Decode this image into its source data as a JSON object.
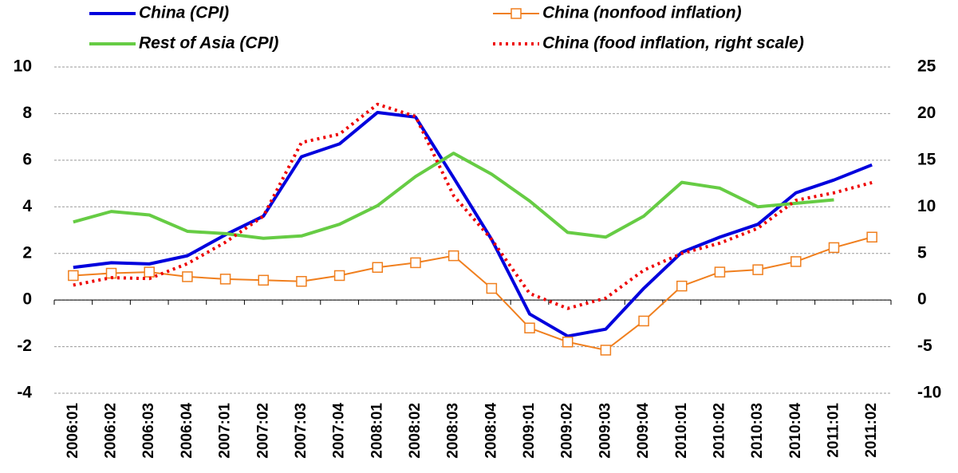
{
  "chart_data": {
    "type": "line",
    "categories": [
      "2006:01",
      "2006:02",
      "2006:03",
      "2006:04",
      "2007:01",
      "2007:02",
      "2007:03",
      "2007:04",
      "2008:01",
      "2008:02",
      "2008:03",
      "2008:04",
      "2009:01",
      "2009:02",
      "2009:03",
      "2009:04",
      "2010:01",
      "2010:02",
      "2010:03",
      "2010:04",
      "2011:01",
      "2011:02"
    ],
    "series": [
      {
        "name": "China (CPI)",
        "color": "#0000dd",
        "values": [
          1.4,
          1.6,
          1.55,
          1.9,
          2.8,
          3.6,
          6.15,
          6.7,
          8.05,
          7.85,
          5.25,
          2.6,
          -0.6,
          -1.55,
          -1.25,
          0.5,
          2.05,
          2.7,
          3.25,
          4.6,
          5.15,
          5.8
        ]
      },
      {
        "name": "China (nonfood inflation)",
        "color": "#f07f1e",
        "marker": "square",
        "values": [
          1.05,
          1.15,
          1.2,
          1.0,
          0.9,
          0.85,
          0.8,
          1.05,
          1.4,
          1.6,
          1.9,
          0.5,
          -1.2,
          -1.8,
          -2.15,
          -0.9,
          0.6,
          1.2,
          1.3,
          1.65,
          2.25,
          2.7
        ]
      },
      {
        "name": "Rest of Asia (CPI)",
        "color": "#66cc44",
        "values": [
          3.35,
          3.8,
          3.65,
          2.95,
          2.85,
          2.65,
          2.75,
          3.25,
          4.05,
          5.3,
          6.3,
          5.4,
          4.25,
          2.9,
          2.7,
          3.6,
          5.05,
          4.8,
          4.0,
          4.15,
          4.3,
          null
        ]
      },
      {
        "name": "China (food inflation, right scale)",
        "color": "#ee0000",
        "dash": "dot",
        "axis": "y2",
        "values": [
          1.6,
          2.4,
          2.3,
          3.9,
          6.2,
          9,
          16.9,
          17.8,
          21,
          19.7,
          11.2,
          6.5,
          0.7,
          -0.9,
          0.2,
          3.2,
          5,
          6.1,
          7.7,
          10.7,
          11.5,
          12.6
        ]
      }
    ],
    "ylim": [
      -4,
      10
    ],
    "yticks": [
      -4,
      -2,
      0,
      2,
      4,
      6,
      8,
      10
    ],
    "y2lim": [
      -10,
      25
    ],
    "y2ticks": [
      -10,
      -5,
      0,
      5,
      10,
      15,
      20,
      25
    ],
    "grid": true,
    "legend": "top"
  }
}
